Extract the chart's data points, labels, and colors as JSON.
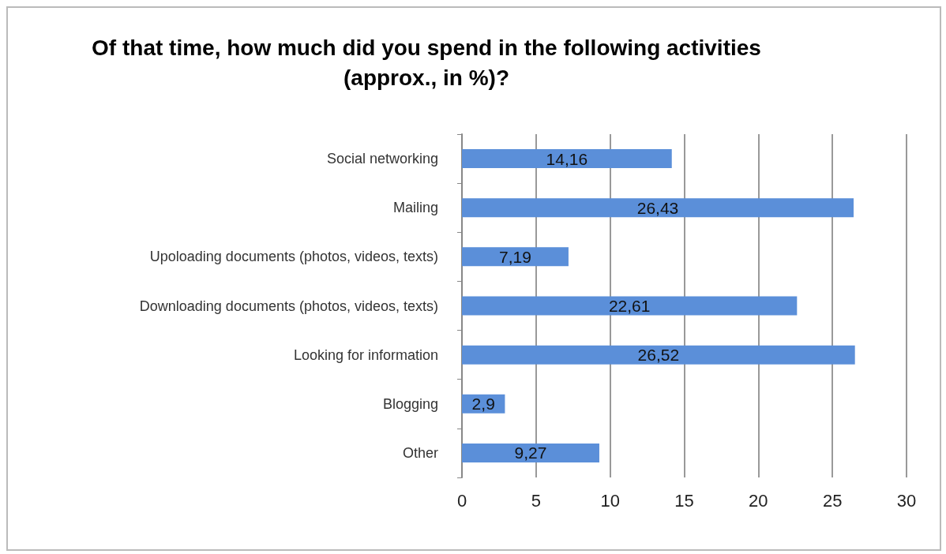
{
  "chart_data": {
    "type": "bar",
    "orientation": "horizontal",
    "title": "Of that time, how much did you spend in the following activities (approx., in %)?",
    "categories": [
      "Social networking",
      "Mailing",
      "Upoloading documents (photos, videos, texts)",
      "Downloading documents (photos, videos, texts)",
      "Looking for information",
      "Blogging",
      "Other"
    ],
    "values": [
      14.16,
      26.43,
      7.19,
      22.61,
      26.52,
      2.9,
      9.27
    ],
    "value_labels": [
      "14,16",
      "26,43",
      "7,19",
      "22,61",
      "26,52",
      "2,9",
      "9,27"
    ],
    "color": "#5b8fd9",
    "xlim": [
      0,
      30
    ],
    "xticks": [
      0,
      5,
      10,
      15,
      20,
      25,
      30
    ],
    "grid": "x"
  }
}
